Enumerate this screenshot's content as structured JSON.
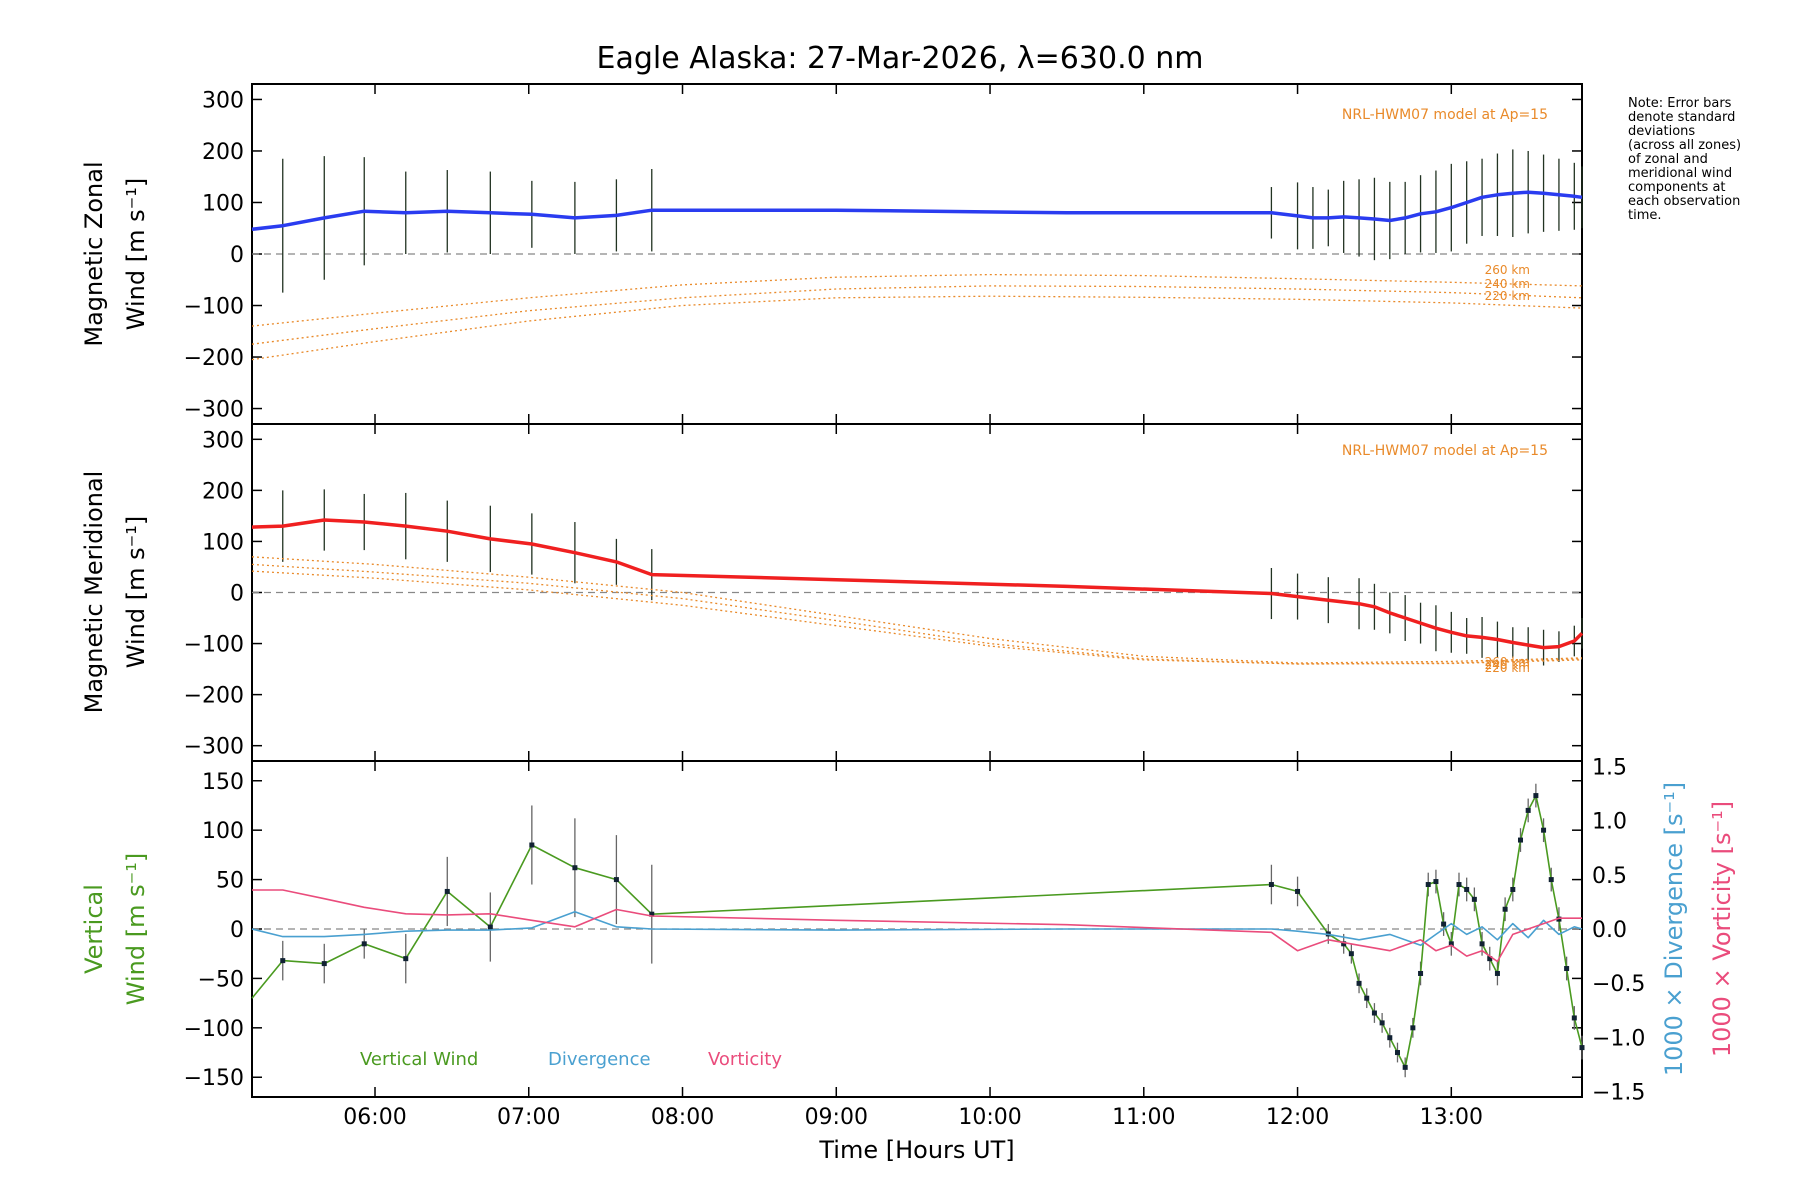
{
  "title": "Eagle Alaska: 27-Mar-2026, λ=630.0 nm",
  "xlabel": "Time [Hours UT]",
  "note_lines": [
    "Note: Error bars",
    "denote standard",
    "deviations",
    "(across all zones)",
    "of zonal and",
    "meridional wind",
    "components at",
    "each observation",
    "time."
  ],
  "model_label": "NRL-HWM07 model at Ap=15",
  "colors": {
    "zonal": "#2a3cf0",
    "meridional": "#f02020",
    "vertical": "#4a9a20",
    "divergence": "#4aa0d0",
    "vorticity": "#ea4c7c",
    "model": "#e98a2a",
    "zero": "#888888"
  },
  "chart_data": [
    {
      "type": "line",
      "panel": "zonal",
      "ylabel_lines": [
        "Magnetic Zonal",
        "Wind [m s⁻¹]"
      ],
      "ylim": [
        -330,
        330
      ],
      "xlim": [
        5.2,
        13.85
      ],
      "yticks": [
        300,
        200,
        100,
        0,
        -100,
        -200,
        -300
      ],
      "ytick_labels": [
        "300",
        "200",
        "100",
        "0",
        "−100",
        "−200",
        "−300"
      ],
      "series": [
        {
          "name": "Magnetic Zonal Wind",
          "x": [
            5.2,
            5.4,
            5.67,
            5.93,
            6.2,
            6.47,
            6.75,
            7.02,
            7.3,
            7.57,
            7.8,
            9.0,
            10.5,
            11.83,
            12.0,
            12.1,
            12.2,
            12.3,
            12.4,
            12.5,
            12.6,
            12.7,
            12.8,
            12.9,
            13.0,
            13.1,
            13.2,
            13.3,
            13.4,
            13.5,
            13.6,
            13.7,
            13.8,
            13.85
          ],
          "y": [
            48,
            55,
            70,
            83,
            80,
            83,
            80,
            77,
            70,
            75,
            85,
            85,
            80,
            80,
            74,
            70,
            70,
            72,
            70,
            68,
            65,
            70,
            78,
            82,
            90,
            100,
            110,
            115,
            118,
            120,
            118,
            115,
            112,
            110
          ],
          "err": [
            0,
            130,
            120,
            105,
            80,
            80,
            80,
            65,
            70,
            70,
            80,
            0,
            0,
            50,
            65,
            60,
            55,
            70,
            75,
            80,
            75,
            70,
            75,
            80,
            85,
            80,
            75,
            80,
            85,
            80,
            75,
            70,
            65,
            60
          ]
        },
        {
          "name": "HWM07 260 km",
          "x": [
            5.2,
            6.0,
            7.0,
            8.0,
            9.0,
            10.0,
            11.0,
            12.0,
            13.0,
            13.85
          ],
          "y": [
            -140,
            -115,
            -85,
            -60,
            -45,
            -40,
            -42,
            -48,
            -55,
            -62
          ]
        },
        {
          "name": "HWM07 240 km",
          "x": [
            5.2,
            6.0,
            7.0,
            8.0,
            9.0,
            10.0,
            11.0,
            12.0,
            13.0,
            13.85
          ],
          "y": [
            -175,
            -145,
            -110,
            -85,
            -68,
            -62,
            -63,
            -68,
            -75,
            -85
          ]
        },
        {
          "name": "HWM07 220 km",
          "x": [
            5.2,
            6.0,
            7.0,
            8.0,
            9.0,
            10.0,
            11.0,
            12.0,
            13.0,
            13.85
          ],
          "y": [
            -205,
            -170,
            -130,
            -100,
            -85,
            -82,
            -84,
            -88,
            -95,
            -105
          ]
        }
      ],
      "model_level_labels": [
        "260 km",
        "240 km",
        "220 km"
      ]
    },
    {
      "type": "line",
      "panel": "meridional",
      "ylabel_lines": [
        "Magnetic Meridional",
        "Wind [m s⁻¹]"
      ],
      "ylim": [
        -330,
        330
      ],
      "xlim": [
        5.2,
        13.85
      ],
      "yticks": [
        300,
        200,
        100,
        0,
        -100,
        -200,
        -300
      ],
      "ytick_labels": [
        "300",
        "200",
        "100",
        "0",
        "−100",
        "−200",
        "−300"
      ],
      "series": [
        {
          "name": "Magnetic Meridional Wind",
          "x": [
            5.2,
            5.4,
            5.67,
            5.93,
            6.2,
            6.47,
            6.75,
            7.02,
            7.3,
            7.57,
            7.8,
            9.0,
            10.5,
            11.83,
            12.0,
            12.2,
            12.4,
            12.5,
            12.6,
            12.7,
            12.8,
            12.9,
            13.0,
            13.1,
            13.2,
            13.3,
            13.4,
            13.5,
            13.6,
            13.7,
            13.8,
            13.85
          ],
          "y": [
            128,
            130,
            142,
            138,
            130,
            120,
            105,
            95,
            78,
            60,
            35,
            25,
            12,
            -2,
            -8,
            -15,
            -22,
            -28,
            -40,
            -50,
            -60,
            -70,
            -78,
            -85,
            -88,
            -92,
            -98,
            -103,
            -108,
            -106,
            -95,
            -80
          ],
          "err": [
            0,
            70,
            60,
            55,
            65,
            60,
            65,
            60,
            60,
            45,
            50,
            0,
            0,
            50,
            45,
            45,
            50,
            45,
            40,
            45,
            40,
            45,
            40,
            35,
            40,
            35,
            30,
            35,
            35,
            30,
            30,
            30
          ]
        },
        {
          "name": "HWM07 260 km",
          "x": [
            5.2,
            6.0,
            7.0,
            8.0,
            9.0,
            10.0,
            11.0,
            12.0,
            13.0,
            13.85
          ],
          "y": [
            70,
            55,
            30,
            0,
            -45,
            -90,
            -125,
            -138,
            -135,
            -128
          ]
        },
        {
          "name": "HWM07 240 km",
          "x": [
            5.2,
            6.0,
            7.0,
            8.0,
            9.0,
            10.0,
            11.0,
            12.0,
            13.0,
            13.85
          ],
          "y": [
            55,
            40,
            18,
            -12,
            -55,
            -100,
            -130,
            -140,
            -138,
            -130
          ]
        },
        {
          "name": "HWM07 220 km",
          "x": [
            5.2,
            6.0,
            7.0,
            8.0,
            9.0,
            10.0,
            11.0,
            12.0,
            13.0,
            13.85
          ],
          "y": [
            42,
            28,
            5,
            -25,
            -65,
            -105,
            -132,
            -140,
            -139,
            -132
          ]
        }
      ],
      "model_level_labels": [
        "260 km",
        "240 km",
        "220 km"
      ]
    },
    {
      "type": "line",
      "panel": "vertical",
      "ylabel_left_lines": [
        "Vertical",
        "Wind [m s⁻¹]"
      ],
      "ylabel_right_1": "1000 × Divergence [s⁻¹]",
      "ylabel_right_2": "1000 × Vorticity [s⁻¹]",
      "ylim": [
        -170,
        170
      ],
      "y2lim": [
        -1.55,
        1.55
      ],
      "xlim": [
        5.2,
        13.85
      ],
      "yticks": [
        150,
        100,
        50,
        0,
        -50,
        -100,
        -150
      ],
      "ytick_labels": [
        "150",
        "100",
        "50",
        "0",
        "−50",
        "−100",
        "−150"
      ],
      "y2ticks": [
        1.5,
        1.0,
        0.5,
        0.0,
        -0.5,
        -1.0,
        -1.5
      ],
      "y2tick_labels": [
        "1.5",
        "1.0",
        "0.5",
        "0.0",
        "−0.5",
        "−1.0",
        "−1.5"
      ],
      "xticks": [
        6,
        7,
        8,
        9,
        10,
        11,
        12,
        13
      ],
      "xtick_labels": [
        "06:00",
        "07:00",
        "08:00",
        "09:00",
        "10:00",
        "11:00",
        "12:00",
        "13:00"
      ],
      "legend": [
        "Vertical Wind",
        "Divergence",
        "Vorticity"
      ],
      "series": [
        {
          "name": "Vertical Wind",
          "x": [
            5.2,
            5.4,
            5.67,
            5.93,
            6.2,
            6.47,
            6.75,
            7.02,
            7.3,
            7.57,
            7.8,
            11.83,
            12.0,
            12.2,
            12.3,
            12.35,
            12.4,
            12.45,
            12.5,
            12.55,
            12.6,
            12.65,
            12.7,
            12.75,
            12.8,
            12.85,
            12.9,
            12.95,
            13.0,
            13.05,
            13.1,
            13.15,
            13.2,
            13.25,
            13.3,
            13.35,
            13.4,
            13.45,
            13.5,
            13.55,
            13.6,
            13.65,
            13.7,
            13.75,
            13.8,
            13.85
          ],
          "y": [
            -70,
            -32,
            -35,
            -15,
            -30,
            38,
            2,
            85,
            62,
            50,
            15,
            45,
            38,
            -5,
            -15,
            -25,
            -55,
            -70,
            -85,
            -95,
            -110,
            -125,
            -140,
            -100,
            -45,
            45,
            48,
            5,
            -15,
            45,
            40,
            30,
            -15,
            -30,
            -45,
            20,
            40,
            90,
            120,
            135,
            100,
            50,
            10,
            -40,
            -90,
            -120
          ],
          "err": [
            0,
            20,
            20,
            15,
            25,
            35,
            35,
            40,
            50,
            45,
            50,
            20,
            15,
            10,
            10,
            10,
            10,
            10,
            10,
            10,
            10,
            10,
            10,
            10,
            12,
            12,
            12,
            12,
            12,
            12,
            12,
            12,
            12,
            12,
            12,
            12,
            12,
            12,
            12,
            12,
            12,
            12,
            12,
            12,
            12,
            12
          ]
        },
        {
          "name": "Divergence",
          "axis": "right",
          "x": [
            5.2,
            5.4,
            5.67,
            5.93,
            6.2,
            6.47,
            6.75,
            7.02,
            7.3,
            7.57,
            7.8,
            9.0,
            10.5,
            11.83,
            12.0,
            12.2,
            12.4,
            12.6,
            12.8,
            12.9,
            13.0,
            13.1,
            13.2,
            13.3,
            13.4,
            13.5,
            13.6,
            13.7,
            13.8,
            13.85
          ],
          "y": [
            0.0,
            -0.07,
            -0.07,
            -0.05,
            -0.02,
            -0.01,
            -0.01,
            0.01,
            0.16,
            0.02,
            0.0,
            -0.01,
            0.0,
            0.0,
            -0.02,
            -0.05,
            -0.1,
            -0.05,
            -0.15,
            -0.05,
            0.05,
            -0.05,
            0.02,
            -0.1,
            0.05,
            -0.08,
            0.08,
            -0.05,
            0.02,
            0.0
          ]
        },
        {
          "name": "Vorticity",
          "axis": "right",
          "x": [
            5.2,
            5.4,
            5.67,
            5.93,
            6.2,
            6.47,
            6.75,
            7.02,
            7.3,
            7.57,
            7.8,
            9.0,
            10.5,
            11.83,
            12.0,
            12.2,
            12.4,
            12.6,
            12.8,
            12.9,
            13.0,
            13.1,
            13.2,
            13.3,
            13.4,
            13.5,
            13.6,
            13.7,
            13.8,
            13.85
          ],
          "y": [
            0.36,
            0.36,
            0.28,
            0.2,
            0.14,
            0.13,
            0.14,
            0.08,
            0.02,
            0.18,
            0.12,
            0.08,
            0.04,
            -0.03,
            -0.2,
            -0.1,
            -0.15,
            -0.2,
            -0.1,
            -0.2,
            -0.15,
            -0.25,
            -0.2,
            -0.3,
            -0.05,
            0.0,
            0.05,
            0.1,
            0.1,
            0.1
          ]
        }
      ]
    }
  ]
}
